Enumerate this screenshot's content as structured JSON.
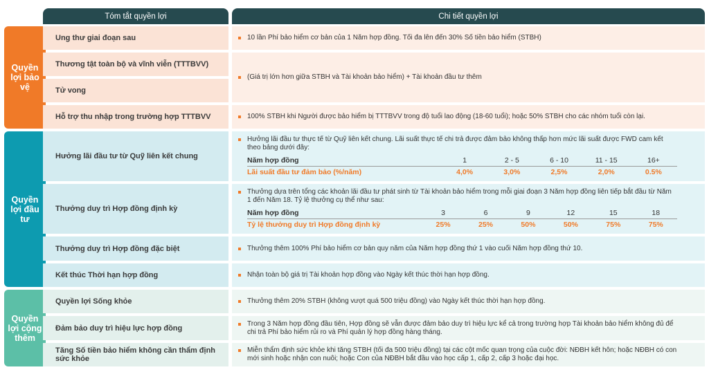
{
  "header": {
    "summary": "Tóm tắt quyền lợi",
    "details": "Chi tiết quyền lợi"
  },
  "colors": {
    "header": "#264a4f",
    "protection": "#f07a28",
    "investment": "#0d9bb0",
    "extra": "#5cbfa7",
    "accent": "#f07a28"
  },
  "groups": [
    {
      "label": "Quyền lợi bảo vệ",
      "benefits": [
        {
          "name": "Ung thư giai đoạn sau",
          "detail": "10 lần Phí bảo hiểm cơ bản của 1 Năm hợp đồng. Tối đa lên đến 30% Số tiền bảo hiểm (STBH)"
        },
        {
          "name": "Thương tật toàn bộ và vĩnh viễn (TTTBVV)",
          "detail": "(Giá trị lớn hơn giữa STBH và Tài khoản bảo hiểm) + Tài khoản đầu tư thêm"
        },
        {
          "name": "Tử vong",
          "detail": ""
        },
        {
          "name": "Hỗ trợ thu nhập trong trường hợp TTTBVV",
          "detail": "100% STBH khi Người được bảo hiểm bị TTTBVV trong độ tuổi lao động (18-60 tuổi); hoặc 50% STBH cho các nhóm tuổi còn lại."
        }
      ]
    },
    {
      "label": "Quyền lợi đầu tư",
      "benefits": [
        {
          "name": "Hưởng lãi đầu tư từ Quỹ liên kết chung",
          "detail": "Hưởng lãi đầu tư thực tế từ Quỹ liên kết chung. Lãi suất thực tế chi trả được đảm bảo không thấp hơn mức lãi suất được FWD cam kết theo bảng dưới đây:",
          "table": {
            "header_label": "Năm hợp đồng",
            "years": [
              "1",
              "2 - 5",
              "6 - 10",
              "11 - 15",
              "16+"
            ],
            "value_label": "Lãi suất đầu tư đảm bảo (%/năm)",
            "values": [
              "4,0%",
              "3,0%",
              "2,5%",
              "2,0%",
              "0.5%"
            ]
          }
        },
        {
          "name": "Thưởng duy trì Hợp đồng định kỳ",
          "detail": "Thưởng dựa trên tổng các khoản lãi đầu tư phát sinh từ Tài khoản bảo hiểm trong mỗi giai đoạn 3 Năm hợp đồng liên tiếp bắt đầu từ Năm 1 đến Năm 18. Tỷ lệ thưởng cụ thể như sau:",
          "table": {
            "header_label": "Năm hợp đồng",
            "years": [
              "3",
              "6",
              "9",
              "12",
              "15",
              "18"
            ],
            "value_label": "Tỷ lệ thưởng duy trì Hợp đồng định kỳ",
            "values": [
              "25%",
              "25%",
              "50%",
              "50%",
              "75%",
              "75%"
            ]
          }
        },
        {
          "name": "Thưởng duy trì Hợp đồng đặc biệt",
          "detail": "Thưởng thêm 100% Phí bảo hiểm cơ bản quy năm của Năm hợp đồng thứ 1 vào cuối Năm hợp đồng thứ 10."
        },
        {
          "name": "Kết thúc Thời hạn hợp đồng",
          "detail": "Nhận toàn bộ giá trị Tài khoản hợp đồng vào Ngày kết thúc thời hạn hợp đồng."
        }
      ]
    },
    {
      "label": "Quyền lợi cộng thêm",
      "benefits": [
        {
          "name": "Quyền lợi Sống khỏe",
          "detail": "Thưởng thêm 20% STBH (không vượt quá 500 triệu đồng) vào Ngày kết thúc thời hạn hợp đồng."
        },
        {
          "name": "Đảm bảo duy trì hiệu lực hợp đồng",
          "detail": "Trong 3 Năm hợp đồng đầu tiên, Hợp đồng sẽ vẫn được đảm bảo duy trì hiệu lực kể cả trong trường hợp Tài khoản bảo hiểm không đủ để chi trả Phí bảo hiểm rủi ro và Phí quản lý hợp đồng hàng tháng."
        },
        {
          "name": "Tăng Số tiền bảo hiểm không cần thẩm định sức khỏe",
          "detail": "Miễn thẩm định sức khỏe khi tăng STBH (tối đa 500 triệu đồng) tại các cột mốc quan trọng của cuộc đời: NĐBH kết hôn; hoặc NĐBH có con mới sinh hoặc nhận con nuôi; hoặc Con của NĐBH bắt đầu vào học cấp 1, cấp 2, cấp 3 hoặc đại học."
        }
      ]
    }
  ]
}
